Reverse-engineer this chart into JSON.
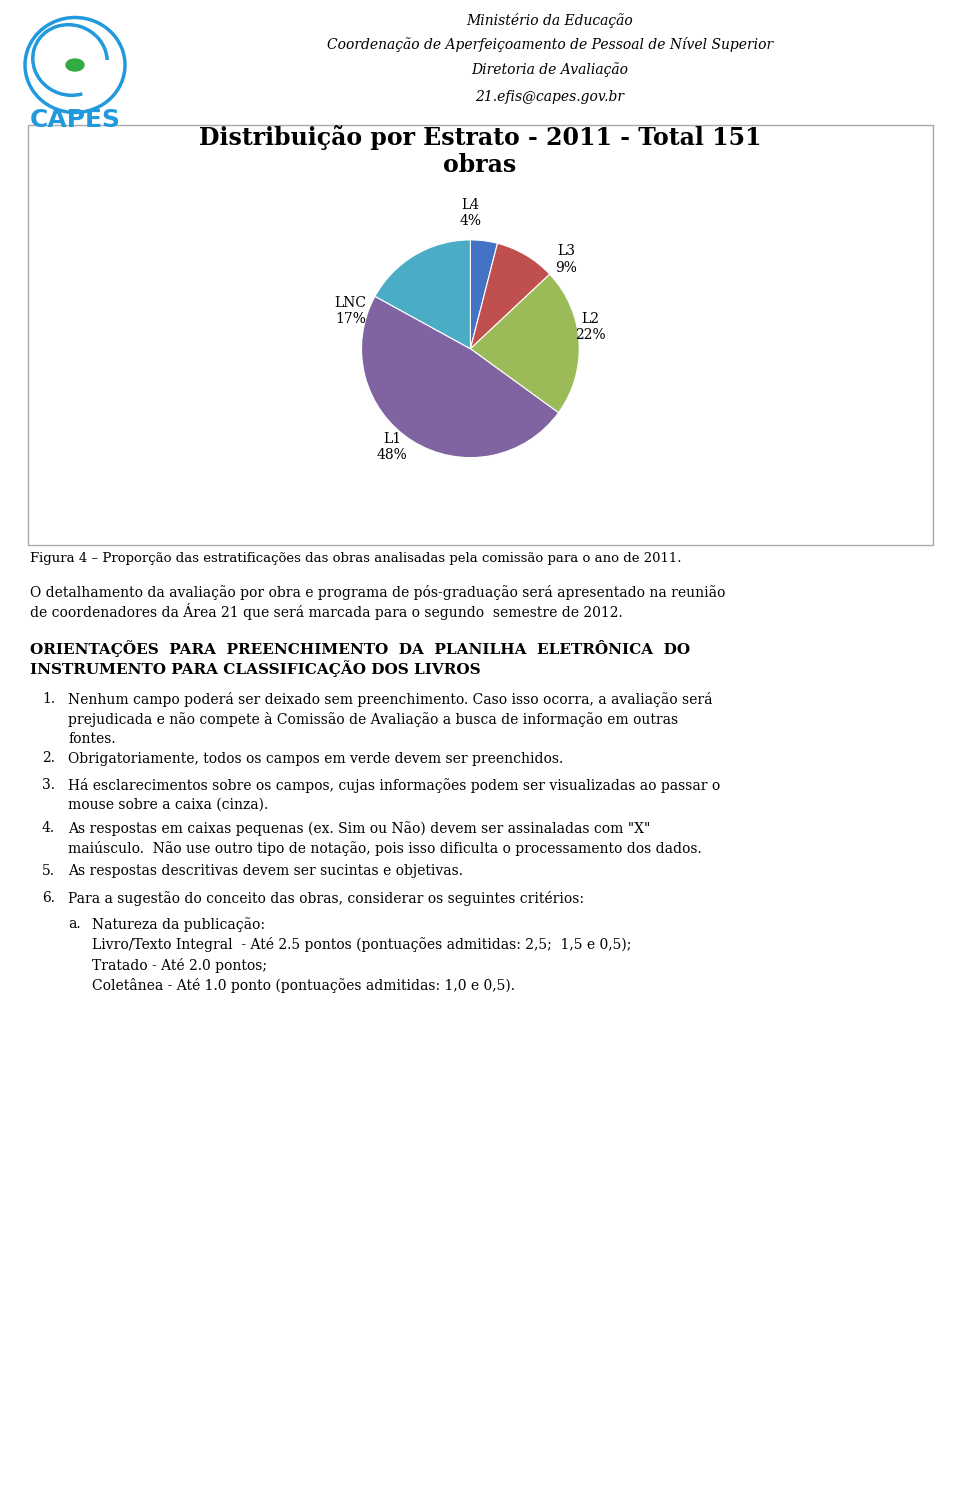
{
  "header_line1": "Ministério da Educação",
  "header_line2": "Coordenação de Aperfeiçoamento de Pessoal de Nível Superior",
  "header_line3": "Diretoria de Avaliação",
  "header_line4": "21.efis@capes.gov.br",
  "chart_title_line1": "Distribuição por Estrato - 2011 - Total 151",
  "chart_title_line2": "obras",
  "pie_labels": [
    "L4",
    "L3",
    "L2",
    "L1",
    "LNC"
  ],
  "pie_values": [
    4,
    9,
    22,
    48,
    17
  ],
  "pie_colors": [
    "#4472C4",
    "#C0504D",
    "#9BBB59",
    "#8064A2",
    "#4BACC6"
  ],
  "pie_startangle": 90,
  "figure_caption": "Figura 4 – Proporção das estratificações das obras analisadas pela comissão para o ano de 2011.",
  "paragraph1_line1": "O detalhamento da avaliação por obra e programa de pós-graduação será apresentado na reunião",
  "paragraph1_line2": "de coordenadores da Área 21 que será marcada para o segundo  semestre de 2012.",
  "section_line1": "ORIENTAÇÕES  PARA  PREENCHIMENTO  DA  PLANILHA  ELETRÔNICA  DO",
  "section_line2": "INSTRUMENTO PARA CLASSIFICAÇÃO DOS LIVROS",
  "items": [
    "Nenhum campo poderá ser deixado sem preenchimento. Caso isso ocorra, a avaliação será\nprejudicada e não compete à Comissão de Avaliação a busca de informação em outras\nfontes.",
    "Obrigatoriamente, todos os campos em verde devem ser preenchidos.",
    "Há esclarecimentos sobre os campos, cujas informações podem ser visualizadas ao passar o\nmouse sobre a caixa (cinza).",
    "As respostas em caixas pequenas (ex. Sim ou Não) devem ser assinaladas com \"X\"\nmaiúsculo.  Não use outro tipo de notação, pois isso dificulta o processamento dos dados.",
    "As respostas descritivas devem ser sucintas e objetivas.",
    "Para a sugestão do conceito das obras, considerar os seguintes critérios:"
  ],
  "sub_item_label": "a.",
  "sub_item_text_line1": "Natureza da publicação:",
  "sub_item_text_line2": "Livro/Texto Integral  - Até 2.5 pontos (pontuações admitidas: 2,5;  1,5 e 0,5);",
  "sub_item_text_line3": "Tratado - Até 2.0 pontos;",
  "sub_item_text_line4": "Coletânea - Até 1.0 ponto (pontuações admitidas: 1,0 e 0,5).",
  "bg_color": "#FFFFFF",
  "text_color": "#000000",
  "border_color": "#AAAAAA",
  "font_size_header": 10,
  "font_size_body": 10,
  "font_size_chart_title": 17,
  "font_size_section": 11
}
